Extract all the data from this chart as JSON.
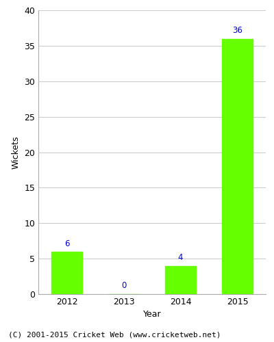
{
  "categories": [
    "2012",
    "2013",
    "2014",
    "2015"
  ],
  "values": [
    6,
    0,
    4,
    36
  ],
  "bar_color": "#66ff00",
  "label_color": "#0000cc",
  "ylabel": "Wickets",
  "xlabel": "Year",
  "ylim": [
    0,
    40
  ],
  "yticks": [
    0,
    5,
    10,
    15,
    20,
    25,
    30,
    35,
    40
  ],
  "footer": "(C) 2001-2015 Cricket Web (www.cricketweb.net)",
  "label_fontsize": 8.5,
  "axis_label_fontsize": 9,
  "tick_fontsize": 9,
  "footer_fontsize": 8,
  "grid_color": "#cccccc",
  "spine_color": "#aaaaaa",
  "background_color": "#ffffff"
}
